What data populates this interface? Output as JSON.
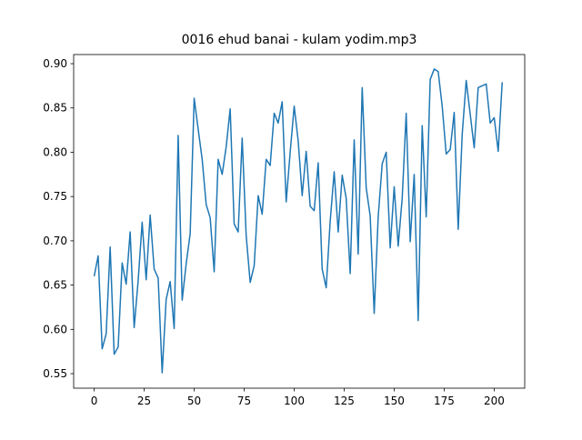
{
  "chart_data": {
    "type": "line",
    "title": "0016 ehud banai - kulam yodim.mp3",
    "x": [
      0,
      2,
      4,
      6,
      8,
      10,
      12,
      14,
      16,
      18,
      20,
      22,
      24,
      26,
      28,
      30,
      32,
      34,
      36,
      38,
      40,
      42,
      44,
      46,
      48,
      50,
      52,
      54,
      56,
      58,
      60,
      62,
      64,
      66,
      68,
      70,
      72,
      74,
      76,
      78,
      80,
      82,
      84,
      86,
      88,
      90,
      92,
      94,
      96,
      98,
      100,
      102,
      104,
      106,
      108,
      110,
      112,
      114,
      116,
      118,
      120,
      122,
      124,
      126,
      128,
      130,
      132,
      134,
      136,
      138,
      140,
      142,
      144,
      146,
      148,
      150,
      152,
      154,
      156,
      158,
      160,
      162,
      164,
      166,
      168,
      170,
      172,
      174,
      176,
      178,
      180,
      182,
      184,
      186,
      188,
      190,
      192,
      194,
      196,
      198,
      200,
      202,
      204
    ],
    "series": [
      {
        "color": "#1f77b4",
        "values": [
          0.66,
          0.683,
          0.578,
          0.595,
          0.693,
          0.572,
          0.58,
          0.675,
          0.651,
          0.71,
          0.602,
          0.655,
          0.721,
          0.656,
          0.729,
          0.668,
          0.658,
          0.551,
          0.634,
          0.654,
          0.601,
          0.819,
          0.633,
          0.674,
          0.708,
          0.861,
          0.826,
          0.792,
          0.741,
          0.726,
          0.665,
          0.792,
          0.775,
          0.806,
          0.849,
          0.719,
          0.71,
          0.816,
          0.706,
          0.653,
          0.672,
          0.751,
          0.73,
          0.792,
          0.785,
          0.844,
          0.833,
          0.857,
          0.744,
          0.8,
          0.852,
          0.813,
          0.751,
          0.801,
          0.739,
          0.734,
          0.788,
          0.668,
          0.647,
          0.722,
          0.778,
          0.71,
          0.774,
          0.748,
          0.663,
          0.814,
          0.685,
          0.873,
          0.76,
          0.728,
          0.618,
          0.727,
          0.787,
          0.8,
          0.692,
          0.761,
          0.694,
          0.748,
          0.844,
          0.699,
          0.775,
          0.61,
          0.83,
          0.727,
          0.882,
          0.894,
          0.891,
          0.852,
          0.798,
          0.803,
          0.845,
          0.713,
          0.82,
          0.881,
          0.843,
          0.805,
          0.873,
          0.875,
          0.877,
          0.833,
          0.839,
          0.801,
          0.879
        ]
      }
    ],
    "xlim": [
      -10.25,
      215.25
    ],
    "xticks": [
      0,
      25,
      50,
      75,
      100,
      125,
      150,
      175,
      200
    ],
    "ylim": [
      0.5336,
      0.9103
    ],
    "yticks": [
      0.55,
      {
        "value": 0.6,
        "label": "0.60"
      },
      0.65,
      {
        "value": 0.7,
        "label": "0.70"
      },
      0.75,
      {
        "value": 0.8,
        "label": "0.80"
      },
      0.85,
      {
        "value": 0.9,
        "label": "0.90"
      }
    ]
  }
}
